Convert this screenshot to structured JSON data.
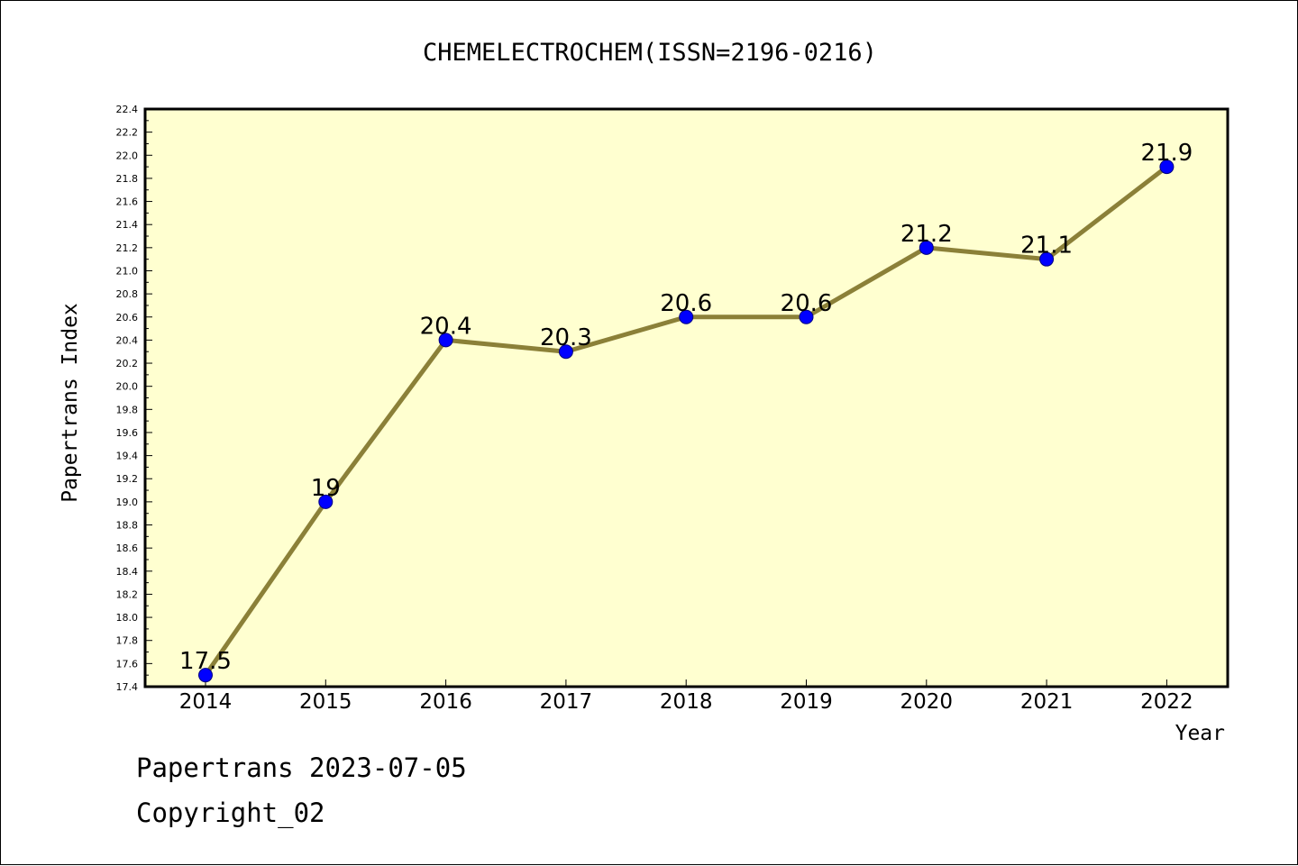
{
  "chart_data": {
    "type": "line",
    "title": "CHEMELECTROCHEM(ISSN=2196-0216)",
    "xlabel": "Year",
    "ylabel": "Papertrans Index",
    "categories": [
      "2014",
      "2015",
      "2016",
      "2017",
      "2018",
      "2019",
      "2020",
      "2021",
      "2022"
    ],
    "series": [
      {
        "values": [
          17.5,
          19,
          20.4,
          20.3,
          20.6,
          20.6,
          21.2,
          21.1,
          21.9
        ],
        "data_labels": [
          "17.5",
          "19",
          "20.4",
          "20.3",
          "20.6",
          "20.6",
          "21.2",
          "21.1",
          "21.9"
        ]
      }
    ],
    "ylim": [
      17.4,
      22.4
    ],
    "yticks": [
      "17.4",
      "17.6",
      "17.8",
      "18.0",
      "18.2",
      "18.4",
      "18.6",
      "18.8",
      "19.0",
      "19.2",
      "19.4",
      "19.6",
      "19.8",
      "20.0",
      "20.2",
      "20.4",
      "20.6",
      "20.8",
      "21.0",
      "21.2",
      "21.4",
      "21.6",
      "21.8",
      "22.0",
      "22.2",
      "22.4"
    ],
    "grid": false,
    "legend": "none",
    "colors": {
      "plot_background": "#FFFFD0",
      "line": "#8B8038",
      "marker": "#0000FF",
      "marker_edge": "#000080"
    }
  },
  "footer": {
    "line1": "Papertrans 2023-07-05",
    "line2": "Copyright_02"
  }
}
